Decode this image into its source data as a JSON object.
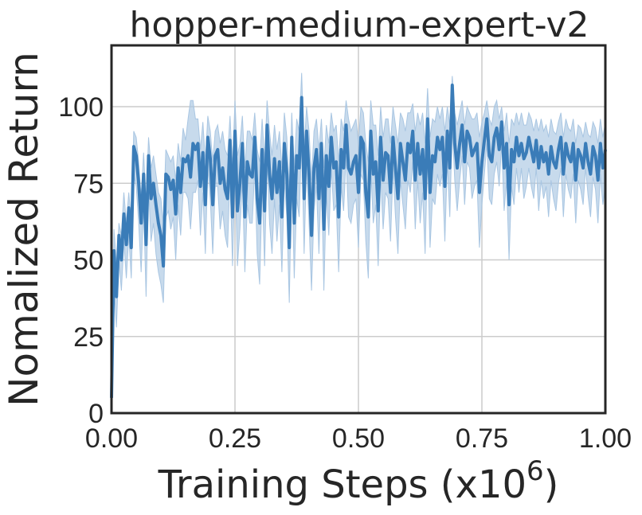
{
  "chart_data": {
    "type": "line",
    "title": "hopper-medium-expert-v2",
    "xlabel": "Training Steps (x10",
    "xlabel_exponent": "6",
    "xlabel_close": ")",
    "ylabel": "Nomalized Return",
    "xlim": [
      0,
      1.0
    ],
    "ylim": [
      0,
      120
    ],
    "xticks": [
      0,
      0.25,
      0.5,
      0.75,
      1.0
    ],
    "xtick_labels": [
      "0.00",
      "0.25",
      "0.50",
      "0.75",
      "1.00"
    ],
    "yticks": [
      0,
      25,
      50,
      75,
      100
    ],
    "ytick_labels": [
      "0",
      "25",
      "50",
      "75",
      "100"
    ],
    "grid": true,
    "colors": {
      "line": "#3a7cb8",
      "band": "#a9c6e2",
      "grid": "#cccccc",
      "axis": "#262626"
    },
    "series": [
      {
        "x": [
          0.0,
          0.005,
          0.01,
          0.015,
          0.02,
          0.025,
          0.03,
          0.035,
          0.04,
          0.045,
          0.05,
          0.055,
          0.06,
          0.065,
          0.07,
          0.075,
          0.08,
          0.085,
          0.09,
          0.095,
          0.1,
          0.105,
          0.11,
          0.115,
          0.12,
          0.125,
          0.13,
          0.135,
          0.14,
          0.145,
          0.15,
          0.155,
          0.16,
          0.165,
          0.17,
          0.175,
          0.18,
          0.185,
          0.19,
          0.195,
          0.2,
          0.205,
          0.21,
          0.215,
          0.22,
          0.225,
          0.23,
          0.235,
          0.24,
          0.245,
          0.25,
          0.255,
          0.26,
          0.265,
          0.27,
          0.275,
          0.28,
          0.285,
          0.29,
          0.295,
          0.3,
          0.305,
          0.31,
          0.315,
          0.32,
          0.325,
          0.33,
          0.335,
          0.34,
          0.345,
          0.35,
          0.355,
          0.36,
          0.365,
          0.37,
          0.375,
          0.38,
          0.385,
          0.39,
          0.395,
          0.4,
          0.405,
          0.41,
          0.415,
          0.42,
          0.425,
          0.43,
          0.435,
          0.44,
          0.445,
          0.45,
          0.455,
          0.46,
          0.465,
          0.47,
          0.475,
          0.48,
          0.485,
          0.49,
          0.495,
          0.5,
          0.505,
          0.51,
          0.515,
          0.52,
          0.525,
          0.53,
          0.535,
          0.54,
          0.545,
          0.55,
          0.555,
          0.56,
          0.565,
          0.57,
          0.575,
          0.58,
          0.585,
          0.59,
          0.595,
          0.6,
          0.605,
          0.61,
          0.615,
          0.62,
          0.625,
          0.63,
          0.635,
          0.64,
          0.645,
          0.65,
          0.655,
          0.66,
          0.665,
          0.67,
          0.675,
          0.68,
          0.685,
          0.69,
          0.695,
          0.7,
          0.705,
          0.71,
          0.715,
          0.72,
          0.725,
          0.73,
          0.735,
          0.74,
          0.745,
          0.75,
          0.755,
          0.76,
          0.765,
          0.77,
          0.775,
          0.78,
          0.785,
          0.79,
          0.795,
          0.8,
          0.805,
          0.81,
          0.815,
          0.82,
          0.825,
          0.83,
          0.835,
          0.84,
          0.845,
          0.85,
          0.855,
          0.86,
          0.865,
          0.87,
          0.875,
          0.88,
          0.885,
          0.89,
          0.895,
          0.9,
          0.905,
          0.91,
          0.915,
          0.92,
          0.925,
          0.93,
          0.935,
          0.94,
          0.945,
          0.95,
          0.955,
          0.96,
          0.965,
          0.97,
          0.975,
          0.98,
          0.985,
          0.99,
          0.995,
          1.0
        ],
        "mean": [
          5,
          53,
          38,
          58,
          50,
          65,
          55,
          67,
          54,
          87,
          84,
          75,
          62,
          78,
          55,
          84,
          70,
          75,
          68,
          62,
          58,
          48,
          78,
          77,
          73,
          76,
          65,
          80,
          72,
          83,
          82,
          84,
          77,
          88,
          86,
          88,
          74,
          85,
          68,
          90,
          83,
          68,
          84,
          86,
          75,
          80,
          73,
          70,
          89,
          64,
          92,
          66,
          75,
          88,
          64,
          82,
          78,
          77,
          90,
          70,
          62,
          86,
          66,
          94,
          78,
          70,
          83,
          72,
          82,
          64,
          88,
          78,
          54,
          90,
          62,
          84,
          80,
          103,
          70,
          92,
          78,
          58,
          80,
          86,
          70,
          88,
          60,
          84,
          74,
          90,
          80,
          82,
          64,
          86,
          80,
          94,
          80,
          78,
          82,
          84,
          72,
          90,
          88,
          72,
          64,
          92,
          78,
          82,
          66,
          90,
          76,
          85,
          84,
          72,
          90,
          80,
          70,
          88,
          82,
          76,
          88,
          85,
          92,
          76,
          88,
          78,
          86,
          70,
          96,
          72,
          84,
          82,
          90,
          86,
          90,
          74,
          92,
          80,
          107,
          88,
          80,
          88,
          94,
          82,
          92,
          90,
          84,
          86,
          88,
          72,
          82,
          89,
          96,
          84,
          82,
          90,
          93,
          86,
          95,
          80,
          88,
          68,
          86,
          82,
          90,
          84,
          88,
          83,
          85,
          90,
          86,
          82,
          89,
          80,
          87,
          82,
          85,
          78,
          87,
          82,
          80,
          86,
          90,
          78,
          88,
          84,
          82,
          88,
          76,
          86,
          84,
          80,
          88,
          82,
          78,
          87,
          84,
          76,
          88,
          80,
          86
        ],
        "upper": [
          10,
          60,
          48,
          62,
          58,
          72,
          62,
          72,
          62,
          92,
          90,
          82,
          70,
          85,
          68,
          90,
          80,
          84,
          78,
          72,
          70,
          62,
          86,
          84,
          82,
          84,
          76,
          88,
          82,
          93,
          89,
          96,
          102,
          102,
          96,
          96,
          86,
          95,
          82,
          97,
          92,
          82,
          92,
          94,
          88,
          92,
          86,
          84,
          97,
          80,
          102,
          84,
          88,
          97,
          80,
          92,
          92,
          89,
          98,
          86,
          82,
          96,
          82,
          102,
          92,
          84,
          94,
          86,
          92,
          80,
          98,
          90,
          72,
          98,
          80,
          96,
          92,
          111,
          86,
          100,
          92,
          76,
          92,
          96,
          86,
          96,
          80,
          94,
          88,
          98,
          92,
          94,
          82,
          96,
          92,
          102,
          96,
          92,
          94,
          96,
          88,
          100,
          98,
          88,
          82,
          102,
          94,
          94,
          84,
          100,
          90,
          96,
          96,
          88,
          100,
          94,
          88,
          98,
          96,
          92,
          98,
          98,
          101,
          92,
          98,
          94,
          98,
          88,
          106,
          90,
          96,
          95,
          100,
          96,
          100,
          92,
          100,
          94,
          110,
          98,
          94,
          98,
          102,
          94,
          100,
          98,
          96,
          96,
          98,
          90,
          95,
          98,
          102,
          96,
          94,
          100,
          102,
          96,
          100,
          92,
          98,
          88,
          96,
          94,
          98,
          94,
          98,
          94,
          94,
          98,
          96,
          92,
          96,
          92,
          96,
          92,
          94,
          90,
          96,
          92,
          91,
          95,
          98,
          90,
          96,
          93,
          92,
          96,
          88,
          94,
          93,
          90,
          95,
          91,
          90,
          95,
          93,
          88,
          96,
          90,
          95
        ],
        "lower": [
          0,
          42,
          28,
          50,
          40,
          56,
          44,
          58,
          44,
          78,
          74,
          62,
          46,
          68,
          38,
          74,
          56,
          62,
          52,
          46,
          42,
          36,
          64,
          66,
          60,
          64,
          50,
          68,
          58,
          72,
          72,
          70,
          60,
          72,
          72,
          76,
          58,
          72,
          52,
          80,
          70,
          52,
          74,
          74,
          60,
          66,
          58,
          54,
          78,
          48,
          80,
          48,
          60,
          76,
          46,
          68,
          62,
          62,
          80,
          52,
          42,
          74,
          48,
          84,
          62,
          52,
          70,
          56,
          68,
          46,
          76,
          64,
          36,
          80,
          44,
          70,
          64,
          90,
          52,
          82,
          62,
          40,
          66,
          74,
          52,
          78,
          40,
          72,
          58,
          80,
          66,
          68,
          46,
          74,
          66,
          84,
          64,
          62,
          68,
          70,
          54,
          78,
          76,
          56,
          44,
          80,
          62,
          68,
          48,
          78,
          60,
          72,
          70,
          56,
          80,
          64,
          52,
          76,
          68,
          60,
          76,
          72,
          82,
          60,
          76,
          62,
          72,
          52,
          84,
          54,
          70,
          68,
          78,
          74,
          78,
          56,
          82,
          64,
          94,
          76,
          66,
          76,
          84,
          68,
          82,
          80,
          70,
          74,
          76,
          54,
          68,
          78,
          88,
          70,
          68,
          78,
          82,
          74,
          88,
          66,
          76,
          50,
          74,
          68,
          80,
          72,
          80,
          70,
          74,
          80,
          74,
          70,
          80,
          66,
          76,
          70,
          74,
          64,
          76,
          70,
          66,
          75,
          80,
          64,
          78,
          73,
          70,
          78,
          62,
          76,
          73,
          68,
          80,
          71,
          64,
          77,
          73,
          62,
          78,
          68,
          75
        ]
      }
    ]
  }
}
